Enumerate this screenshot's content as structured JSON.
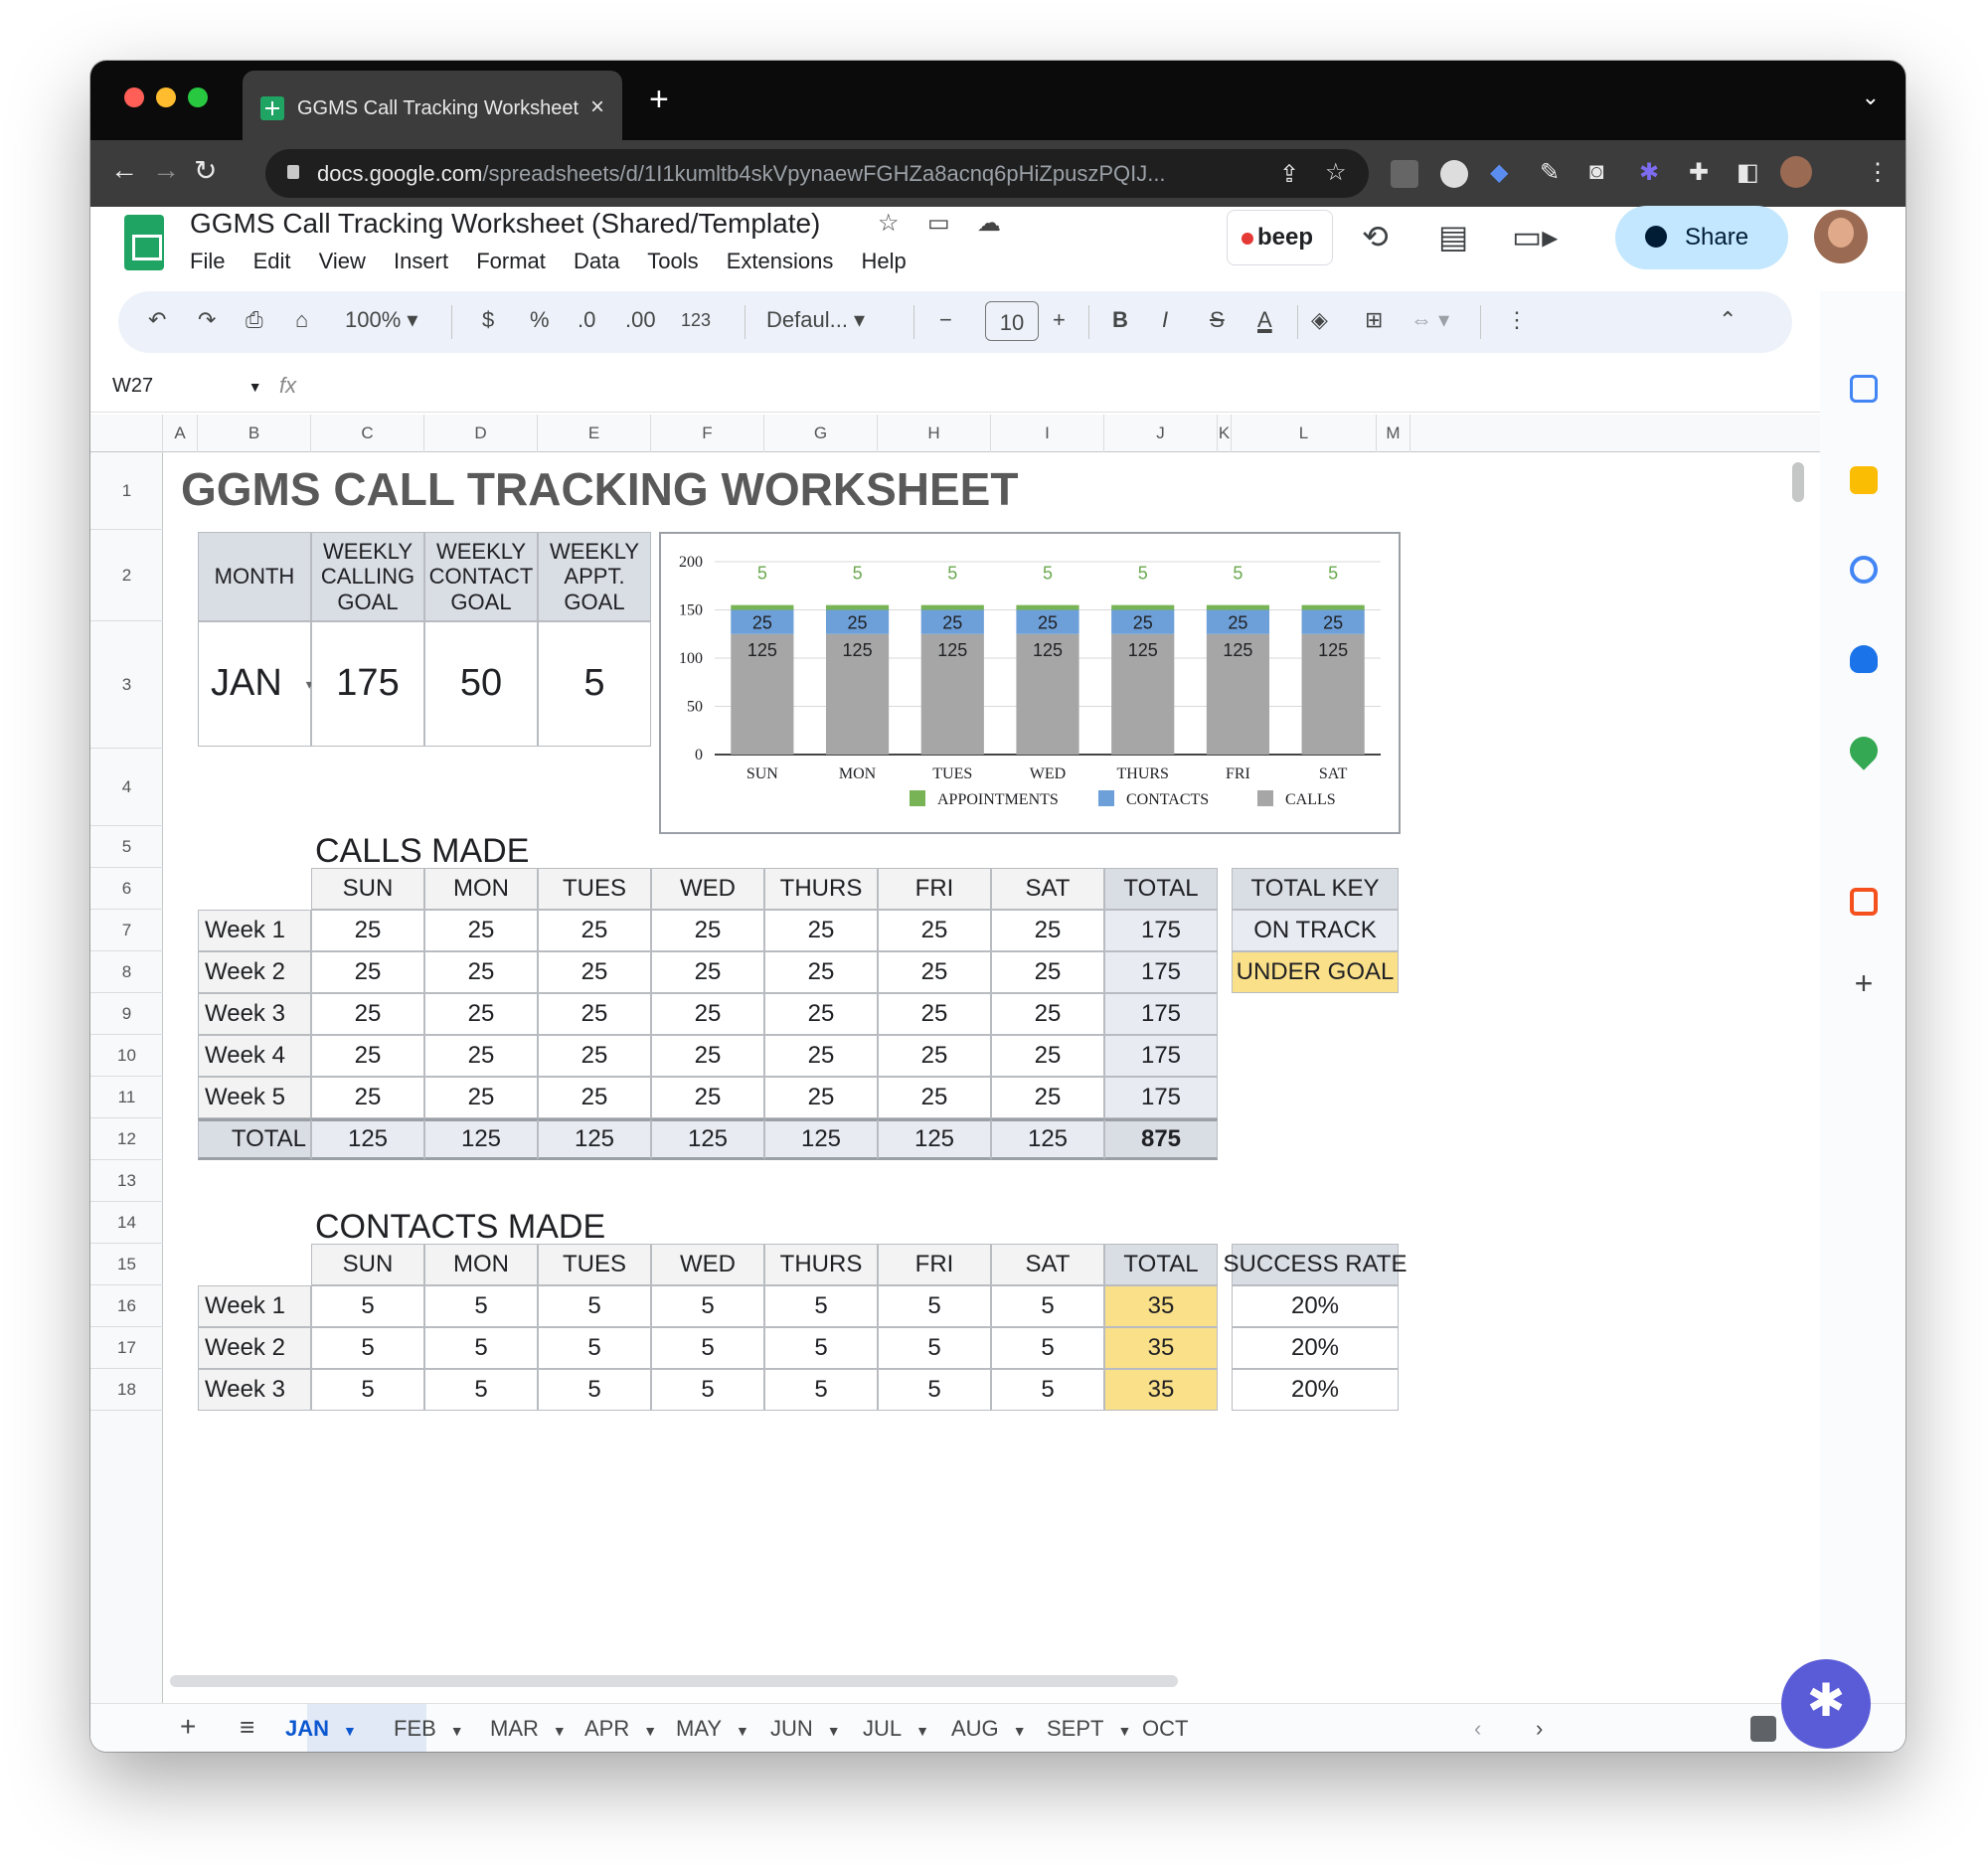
{
  "browser": {
    "tab_title": "GGMS Call Tracking Worksheet",
    "new_tab": "+",
    "close": "×",
    "url_host": "docs.google.com",
    "url_path": "/spreadsheets/d/1I1kumltb4skVpynaewFGHZa8acnq6pHiZpuszPQIJ..."
  },
  "doc": {
    "title": "GGMS Call Tracking Worksheet (Shared/Template)",
    "menus": [
      "File",
      "Edit",
      "View",
      "Insert",
      "Format",
      "Data",
      "Tools",
      "Extensions",
      "Help"
    ],
    "beep_label": "beep",
    "share_label": "Share"
  },
  "toolbar": {
    "zoom": "100%",
    "currency": "$",
    "percent": "%",
    "dec_less": ".0",
    "dec_more": ".00",
    "number_format": "123",
    "font": "Defaul...",
    "font_size": "10",
    "bold": "B",
    "italic": "I",
    "strike": "S",
    "text_color": "A"
  },
  "formula_bar": {
    "name_box": "W27",
    "fx": "fx"
  },
  "columns": [
    "A",
    "B",
    "C",
    "D",
    "E",
    "F",
    "G",
    "H",
    "I",
    "J",
    "K",
    "L",
    "M"
  ],
  "rows": [
    "1",
    "2",
    "3",
    "4",
    "5",
    "6",
    "7",
    "8",
    "9",
    "10",
    "11",
    "12",
    "13",
    "14",
    "15",
    "16",
    "17",
    "18"
  ],
  "sheet": {
    "title": "GGMS CALL TRACKING WORKSHEET",
    "goals_headers": [
      "MONTH",
      "WEEKLY\nCALLING\nGOAL",
      "WEEKLY\nCONTACT\nGOAL",
      "WEEKLY\nAPPT.\nGOAL"
    ],
    "month": "JAN",
    "calling_goal": "175",
    "contact_goal": "50",
    "appt_goal": "5",
    "calls_title": "CALLS MADE",
    "contacts_title": "CONTACTS MADE",
    "day_headers": [
      "SUN",
      "MON",
      "TUES",
      "WED",
      "THURS",
      "FRI",
      "SAT"
    ],
    "total_header": "TOTAL",
    "calls_rows": [
      {
        "label": "Week 1",
        "values": [
          "25",
          "25",
          "25",
          "25",
          "25",
          "25",
          "25"
        ],
        "total": "175"
      },
      {
        "label": "Week 2",
        "values": [
          "25",
          "25",
          "25",
          "25",
          "25",
          "25",
          "25"
        ],
        "total": "175"
      },
      {
        "label": "Week 3",
        "values": [
          "25",
          "25",
          "25",
          "25",
          "25",
          "25",
          "25"
        ],
        "total": "175"
      },
      {
        "label": "Week 4",
        "values": [
          "25",
          "25",
          "25",
          "25",
          "25",
          "25",
          "25"
        ],
        "total": "175"
      },
      {
        "label": "Week 5",
        "values": [
          "25",
          "25",
          "25",
          "25",
          "25",
          "25",
          "25"
        ],
        "total": "175"
      }
    ],
    "calls_total_row": {
      "label": "TOTAL",
      "values": [
        "125",
        "125",
        "125",
        "125",
        "125",
        "125",
        "125"
      ],
      "total": "875"
    },
    "total_key": {
      "header": "TOTAL KEY",
      "on_track": "ON TRACK",
      "under_goal": "UNDER GOAL"
    },
    "contacts_rows": [
      {
        "label": "Week 1",
        "values": [
          "5",
          "5",
          "5",
          "5",
          "5",
          "5",
          "5"
        ],
        "total": "35",
        "rate": "20%"
      },
      {
        "label": "Week 2",
        "values": [
          "5",
          "5",
          "5",
          "5",
          "5",
          "5",
          "5"
        ],
        "total": "35",
        "rate": "20%"
      },
      {
        "label": "Week 3",
        "values": [
          "5",
          "5",
          "5",
          "5",
          "5",
          "5",
          "5"
        ],
        "total": "35",
        "rate": "20%"
      }
    ],
    "success_rate_header": "SUCCESS RATE"
  },
  "chart_data": {
    "type": "bar",
    "stacked": true,
    "categories": [
      "SUN",
      "MON",
      "TUES",
      "WED",
      "THURS",
      "FRI",
      "SAT"
    ],
    "series": [
      {
        "name": "CALLS",
        "color": "#a6a6a6",
        "values": [
          125,
          125,
          125,
          125,
          125,
          125,
          125
        ]
      },
      {
        "name": "CONTACTS",
        "color": "#6d9fd8",
        "values": [
          25,
          25,
          25,
          25,
          25,
          25,
          25
        ]
      },
      {
        "name": "APPOINTMENTS",
        "color": "#78b356",
        "values": [
          5,
          5,
          5,
          5,
          5,
          5,
          5
        ]
      }
    ],
    "legend_order": [
      "APPOINTMENTS",
      "CONTACTS",
      "CALLS"
    ],
    "yticks": [
      "0",
      "50",
      "100",
      "150",
      "200"
    ],
    "ylim": [
      0,
      200
    ],
    "legend_position": "bottom",
    "grid": true
  },
  "sheet_tabs": [
    "JAN",
    "FEB",
    "MAR",
    "APR",
    "MAY",
    "JUN",
    "JUL",
    "AUG",
    "SEPT",
    "OCT"
  ],
  "active_tab": "JAN"
}
